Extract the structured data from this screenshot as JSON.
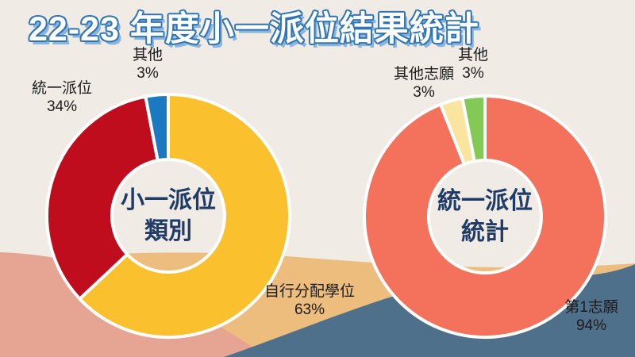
{
  "title": "22-23 年度小一派位結果統計",
  "title_style": {
    "fill": "#ffffff",
    "outline": "#2e74b5",
    "shadow": "#8ab4dc"
  },
  "background": {
    "base": "#f0ece5",
    "waves": {
      "tan": "#edbd7e",
      "salmon": "#e6a493",
      "blue": "#4f708b"
    }
  },
  "text_colors": {
    "center_label": "#1f3b66",
    "slice_label": "#1b1b1b"
  },
  "chart_data": [
    {
      "type": "pie",
      "subtype": "donut",
      "title": "小一派位類別",
      "center_label": [
        "小一派位",
        "類別"
      ],
      "legend_position": "none",
      "start_angle": 0,
      "direction": "clockwise",
      "slices": [
        {
          "name": "自行分配學位",
          "value": 63,
          "value_label": "63%",
          "color": "#fac02d"
        },
        {
          "name": "統一派位",
          "value": 34,
          "value_label": "34%",
          "color": "#c00d1e"
        },
        {
          "name": "其他",
          "value": 3,
          "value_label": "3%",
          "color": "#1b79c2"
        }
      ]
    },
    {
      "type": "pie",
      "subtype": "donut",
      "title": "統一派位統計",
      "center_label": [
        "統一派位",
        "統計"
      ],
      "legend_position": "none",
      "start_angle": 0,
      "direction": "clockwise",
      "slices": [
        {
          "name": "第1志願",
          "value": 94,
          "value_label": "94%",
          "color": "#f4715b"
        },
        {
          "name": "其他志願",
          "value": 3,
          "value_label": "3%",
          "color": "#fae5a0"
        },
        {
          "name": "其他",
          "value": 3,
          "value_label": "3%",
          "color": "#83c955"
        }
      ]
    }
  ]
}
